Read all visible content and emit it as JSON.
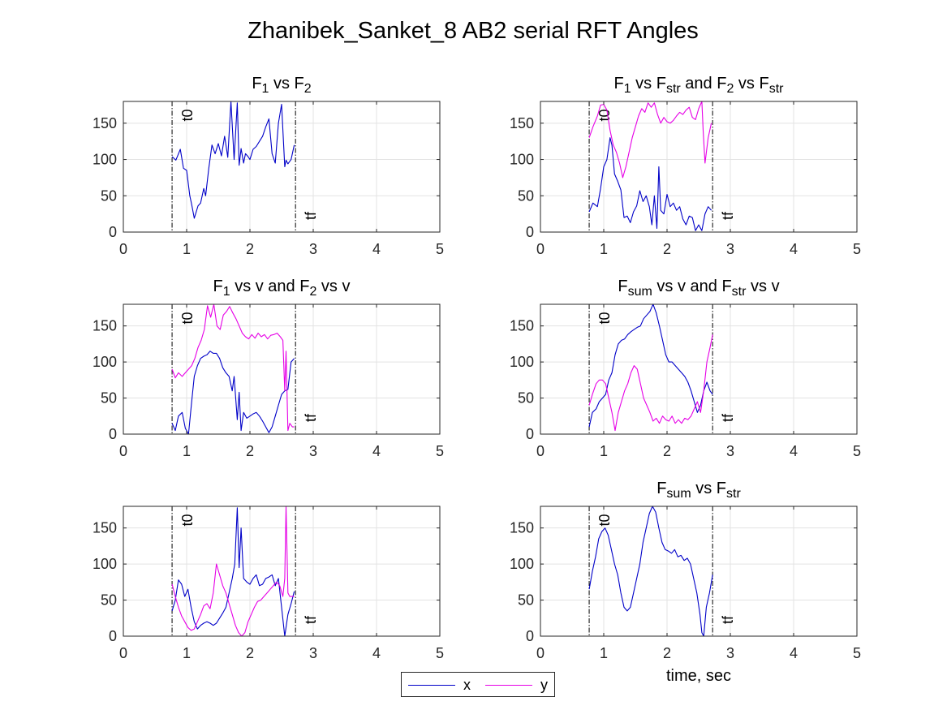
{
  "figure": {
    "title": "Zhanibek_Sanket_8 AB2 serial RFT Angles",
    "xlabel": "time, sec",
    "marker_labels": {
      "t0": "t0",
      "tf": "tf"
    },
    "colors": {
      "x": "#0000c8",
      "y": "#e600e6"
    }
  },
  "legend": [
    {
      "name": "x",
      "color": "#0000c8"
    },
    {
      "name": "y",
      "color": "#e600e6"
    }
  ],
  "chart_data": [
    {
      "type": "line",
      "title": "F_1 vs F_2",
      "title_parts": [
        [
          "F",
          ""
        ],
        [
          "1",
          "sub"
        ],
        [
          " vs F",
          ""
        ],
        [
          "2",
          "sub"
        ]
      ],
      "xlim": [
        0,
        5
      ],
      "ylim": [
        0,
        180
      ],
      "xticks": [
        0,
        1,
        2,
        3,
        4,
        5
      ],
      "yticks": [
        0,
        50,
        100,
        150
      ],
      "t0": 0.77,
      "tf": 2.72,
      "grid": true,
      "series": [
        {
          "name": "x",
          "color": "#0000c8",
          "x": [
            0.77,
            0.83,
            0.9,
            0.95,
            1.0,
            1.05,
            1.08,
            1.12,
            1.18,
            1.22,
            1.27,
            1.3,
            1.35,
            1.4,
            1.45,
            1.5,
            1.55,
            1.6,
            1.65,
            1.7,
            1.75,
            1.8,
            1.83,
            1.86,
            1.9,
            1.93,
            1.97,
            2.0,
            2.05,
            2.1,
            2.15,
            2.2,
            2.25,
            2.3,
            2.35,
            2.4,
            2.45,
            2.5,
            2.55,
            2.57,
            2.6,
            2.65,
            2.7
          ],
          "y": [
            104,
            99,
            114,
            88,
            85,
            50,
            38,
            19,
            36,
            40,
            60,
            50,
            88,
            120,
            108,
            122,
            105,
            132,
            103,
            180,
            100,
            178,
            92,
            115,
            95,
            108,
            104,
            100,
            114,
            118,
            125,
            132,
            145,
            156,
            108,
            95,
            150,
            176,
            90,
            99,
            94,
            100,
            120
          ]
        }
      ]
    },
    {
      "type": "line",
      "title": "F_1 vs F_str and F_2 vs F_str",
      "title_parts": [
        [
          "F",
          ""
        ],
        [
          "1",
          "sub"
        ],
        [
          " vs F",
          ""
        ],
        [
          "str",
          "sub"
        ],
        [
          " and F",
          ""
        ],
        [
          "2",
          "sub"
        ],
        [
          " vs F",
          ""
        ],
        [
          "str",
          "sub"
        ]
      ],
      "xlim": [
        0,
        5
      ],
      "ylim": [
        0,
        180
      ],
      "xticks": [
        0,
        1,
        2,
        3,
        4,
        5
      ],
      "yticks": [
        0,
        50,
        100,
        150
      ],
      "t0": 0.77,
      "tf": 2.72,
      "grid": true,
      "series": [
        {
          "name": "x",
          "color": "#0000c8",
          "x": [
            0.77,
            0.83,
            0.9,
            0.95,
            1.0,
            1.05,
            1.1,
            1.13,
            1.17,
            1.22,
            1.27,
            1.32,
            1.37,
            1.42,
            1.47,
            1.52,
            1.57,
            1.62,
            1.67,
            1.72,
            1.76,
            1.8,
            1.84,
            1.87,
            1.9,
            1.95,
            2.0,
            2.05,
            2.1,
            2.15,
            2.2,
            2.25,
            2.3,
            2.35,
            2.4,
            2.45,
            2.5,
            2.55,
            2.6,
            2.65,
            2.7
          ],
          "y": [
            28,
            40,
            35,
            60,
            90,
            100,
            130,
            120,
            80,
            70,
            58,
            20,
            22,
            13,
            28,
            36,
            57,
            42,
            50,
            35,
            10,
            50,
            5,
            90,
            30,
            25,
            52,
            35,
            40,
            30,
            35,
            18,
            10,
            22,
            20,
            2,
            10,
            2,
            25,
            35,
            30
          ]
        },
        {
          "name": "y",
          "color": "#e600e6",
          "x": [
            0.77,
            0.83,
            0.9,
            0.95,
            1.0,
            1.05,
            1.1,
            1.15,
            1.2,
            1.25,
            1.3,
            1.35,
            1.4,
            1.45,
            1.5,
            1.55,
            1.6,
            1.65,
            1.7,
            1.75,
            1.8,
            1.85,
            1.9,
            1.95,
            2.0,
            2.05,
            2.1,
            2.15,
            2.2,
            2.25,
            2.3,
            2.35,
            2.4,
            2.45,
            2.5,
            2.55,
            2.57,
            2.6,
            2.65,
            2.7
          ],
          "y": [
            130,
            145,
            160,
            175,
            176,
            168,
            140,
            120,
            110,
            95,
            75,
            90,
            110,
            130,
            145,
            160,
            170,
            165,
            178,
            172,
            178,
            162,
            150,
            158,
            152,
            150,
            154,
            160,
            165,
            162,
            168,
            172,
            158,
            155,
            170,
            180,
            140,
            95,
            130,
            150
          ]
        }
      ]
    },
    {
      "type": "line",
      "title": "F_1 vs v and F_2 vs v",
      "title_parts": [
        [
          "F",
          ""
        ],
        [
          "1",
          "sub"
        ],
        [
          " vs v and F",
          ""
        ],
        [
          "2",
          "sub"
        ],
        [
          " vs v",
          ""
        ]
      ],
      "xlim": [
        0,
        5
      ],
      "ylim": [
        0,
        180
      ],
      "xticks": [
        0,
        1,
        2,
        3,
        4,
        5
      ],
      "yticks": [
        0,
        50,
        100,
        150
      ],
      "t0": 0.77,
      "tf": 2.72,
      "grid": true,
      "series": [
        {
          "name": "x",
          "color": "#0000c8",
          "x": [
            0.77,
            0.82,
            0.87,
            0.93,
            0.98,
            1.03,
            1.08,
            1.12,
            1.17,
            1.22,
            1.27,
            1.32,
            1.37,
            1.42,
            1.47,
            1.52,
            1.57,
            1.62,
            1.67,
            1.72,
            1.75,
            1.8,
            1.83,
            1.86,
            1.9,
            1.95,
            2.0,
            2.05,
            2.1,
            2.15,
            2.2,
            2.25,
            2.3,
            2.35,
            2.4,
            2.45,
            2.5,
            2.55,
            2.6,
            2.65,
            2.7
          ],
          "y": [
            15,
            5,
            25,
            30,
            8,
            0,
            45,
            80,
            95,
            105,
            108,
            110,
            115,
            112,
            112,
            105,
            92,
            85,
            80,
            60,
            80,
            20,
            58,
            5,
            30,
            22,
            25,
            28,
            30,
            25,
            18,
            10,
            2,
            10,
            25,
            40,
            55,
            60,
            62,
            100,
            105
          ]
        },
        {
          "name": "y",
          "color": "#e600e6",
          "x": [
            0.77,
            0.82,
            0.87,
            0.93,
            0.98,
            1.03,
            1.08,
            1.13,
            1.18,
            1.23,
            1.28,
            1.33,
            1.38,
            1.43,
            1.48,
            1.53,
            1.58,
            1.63,
            1.68,
            1.73,
            1.78,
            1.83,
            1.88,
            1.93,
            1.98,
            2.03,
            2.08,
            2.13,
            2.18,
            2.23,
            2.28,
            2.33,
            2.38,
            2.43,
            2.48,
            2.52,
            2.55,
            2.57,
            2.6,
            2.63,
            2.67,
            2.7
          ],
          "y": [
            90,
            78,
            85,
            80,
            85,
            90,
            95,
            105,
            120,
            130,
            145,
            178,
            162,
            180,
            150,
            145,
            165,
            170,
            177,
            168,
            160,
            150,
            140,
            135,
            132,
            138,
            133,
            140,
            135,
            138,
            132,
            137,
            138,
            140,
            135,
            130,
            60,
            115,
            5,
            15,
            10,
            10
          ]
        }
      ]
    },
    {
      "type": "line",
      "title": "F_sum vs v and F_str vs v",
      "title_parts": [
        [
          "F",
          ""
        ],
        [
          "sum",
          "sub"
        ],
        [
          " vs v and F",
          ""
        ],
        [
          "str",
          "sub"
        ],
        [
          " vs v",
          ""
        ]
      ],
      "xlim": [
        0,
        5
      ],
      "ylim": [
        0,
        180
      ],
      "xticks": [
        0,
        1,
        2,
        3,
        4,
        5
      ],
      "yticks": [
        0,
        50,
        100,
        150
      ],
      "t0": 0.77,
      "tf": 2.72,
      "grid": true,
      "series": [
        {
          "name": "x",
          "color": "#0000c8",
          "x": [
            0.77,
            0.82,
            0.88,
            0.93,
            0.98,
            1.03,
            1.08,
            1.13,
            1.18,
            1.23,
            1.28,
            1.33,
            1.38,
            1.43,
            1.48,
            1.53,
            1.58,
            1.63,
            1.68,
            1.73,
            1.78,
            1.83,
            1.88,
            1.93,
            1.98,
            2.03,
            2.08,
            2.13,
            2.18,
            2.23,
            2.28,
            2.33,
            2.38,
            2.43,
            2.48,
            2.53,
            2.58,
            2.63,
            2.68,
            2.72
          ],
          "y": [
            10,
            30,
            35,
            45,
            50,
            55,
            75,
            85,
            110,
            125,
            130,
            132,
            138,
            142,
            145,
            148,
            150,
            160,
            165,
            170,
            180,
            168,
            150,
            130,
            110,
            100,
            100,
            95,
            90,
            85,
            80,
            72,
            60,
            45,
            30,
            40,
            60,
            72,
            60,
            55
          ]
        },
        {
          "name": "y",
          "color": "#e600e6",
          "x": [
            0.77,
            0.82,
            0.88,
            0.93,
            0.98,
            1.03,
            1.08,
            1.13,
            1.18,
            1.23,
            1.28,
            1.33,
            1.38,
            1.43,
            1.48,
            1.53,
            1.58,
            1.63,
            1.68,
            1.73,
            1.78,
            1.83,
            1.88,
            1.93,
            1.98,
            2.03,
            2.08,
            2.13,
            2.18,
            2.23,
            2.28,
            2.33,
            2.38,
            2.43,
            2.48,
            2.53,
            2.58,
            2.63,
            2.68,
            2.72
          ],
          "y": [
            40,
            55,
            70,
            75,
            75,
            70,
            50,
            30,
            5,
            30,
            45,
            60,
            70,
            85,
            95,
            90,
            70,
            50,
            40,
            30,
            18,
            22,
            15,
            25,
            20,
            18,
            25,
            15,
            20,
            15,
            22,
            20,
            25,
            35,
            45,
            30,
            60,
            100,
            120,
            138
          ]
        }
      ]
    },
    {
      "type": "line",
      "title": "",
      "title_parts": [],
      "xlim": [
        0,
        5
      ],
      "ylim": [
        0,
        180
      ],
      "xticks": [
        0,
        1,
        2,
        3,
        4,
        5
      ],
      "yticks": [
        0,
        50,
        100,
        150
      ],
      "t0": 0.77,
      "tf": 2.72,
      "grid": true,
      "series": [
        {
          "name": "x",
          "color": "#0000c8",
          "x": [
            0.77,
            0.82,
            0.87,
            0.92,
            0.97,
            1.02,
            1.07,
            1.12,
            1.17,
            1.22,
            1.27,
            1.32,
            1.37,
            1.42,
            1.47,
            1.52,
            1.57,
            1.62,
            1.67,
            1.72,
            1.76,
            1.8,
            1.83,
            1.86,
            1.9,
            1.95,
            2.0,
            2.05,
            2.1,
            2.15,
            2.2,
            2.25,
            2.3,
            2.35,
            2.4,
            2.45,
            2.5,
            2.55,
            2.6,
            2.65,
            2.7
          ],
          "y": [
            35,
            50,
            78,
            72,
            55,
            65,
            40,
            20,
            10,
            15,
            18,
            20,
            18,
            15,
            18,
            25,
            32,
            40,
            60,
            80,
            100,
            178,
            95,
            150,
            80,
            75,
            72,
            80,
            85,
            70,
            72,
            80,
            82,
            85,
            70,
            80,
            40,
            0,
            30,
            45,
            62
          ]
        },
        {
          "name": "y",
          "color": "#e600e6",
          "x": [
            0.77,
            0.82,
            0.87,
            0.92,
            0.97,
            1.02,
            1.07,
            1.12,
            1.17,
            1.22,
            1.27,
            1.32,
            1.37,
            1.42,
            1.47,
            1.52,
            1.57,
            1.62,
            1.67,
            1.72,
            1.77,
            1.82,
            1.87,
            1.92,
            1.97,
            2.02,
            2.07,
            2.12,
            2.17,
            2.22,
            2.27,
            2.32,
            2.37,
            2.42,
            2.47,
            2.52,
            2.55,
            2.57,
            2.6,
            2.63,
            2.67,
            2.7
          ],
          "y": [
            72,
            55,
            40,
            28,
            20,
            12,
            8,
            10,
            20,
            30,
            42,
            45,
            38,
            60,
            100,
            85,
            70,
            60,
            45,
            30,
            15,
            5,
            0,
            5,
            20,
            30,
            40,
            48,
            50,
            55,
            60,
            65,
            70,
            75,
            70,
            55,
            80,
            180,
            60,
            55,
            55,
            55
          ]
        }
      ]
    },
    {
      "type": "line",
      "title": "F_sum vs F_str",
      "title_parts": [
        [
          "F",
          ""
        ],
        [
          "sum",
          "sub"
        ],
        [
          " vs F",
          ""
        ],
        [
          "str",
          "sub"
        ]
      ],
      "xlim": [
        0,
        5
      ],
      "ylim": [
        0,
        180
      ],
      "xticks": [
        0,
        1,
        2,
        3,
        4,
        5
      ],
      "yticks": [
        0,
        50,
        100,
        150
      ],
      "t0": 0.77,
      "tf": 2.72,
      "grid": true,
      "series": [
        {
          "name": "x",
          "color": "#0000c8",
          "x": [
            0.77,
            0.82,
            0.87,
            0.92,
            0.97,
            1.02,
            1.07,
            1.12,
            1.17,
            1.22,
            1.27,
            1.32,
            1.37,
            1.42,
            1.47,
            1.52,
            1.57,
            1.62,
            1.67,
            1.72,
            1.77,
            1.82,
            1.87,
            1.92,
            1.97,
            2.02,
            2.07,
            2.12,
            2.17,
            2.22,
            2.27,
            2.32,
            2.37,
            2.42,
            2.47,
            2.52,
            2.55,
            2.58,
            2.62,
            2.67,
            2.72
          ],
          "y": [
            65,
            90,
            110,
            135,
            145,
            150,
            140,
            120,
            100,
            85,
            60,
            40,
            35,
            40,
            60,
            80,
            100,
            130,
            150,
            170,
            180,
            172,
            150,
            130,
            120,
            118,
            115,
            120,
            110,
            112,
            105,
            108,
            100,
            80,
            60,
            30,
            5,
            0,
            40,
            60,
            85
          ]
        }
      ]
    }
  ]
}
